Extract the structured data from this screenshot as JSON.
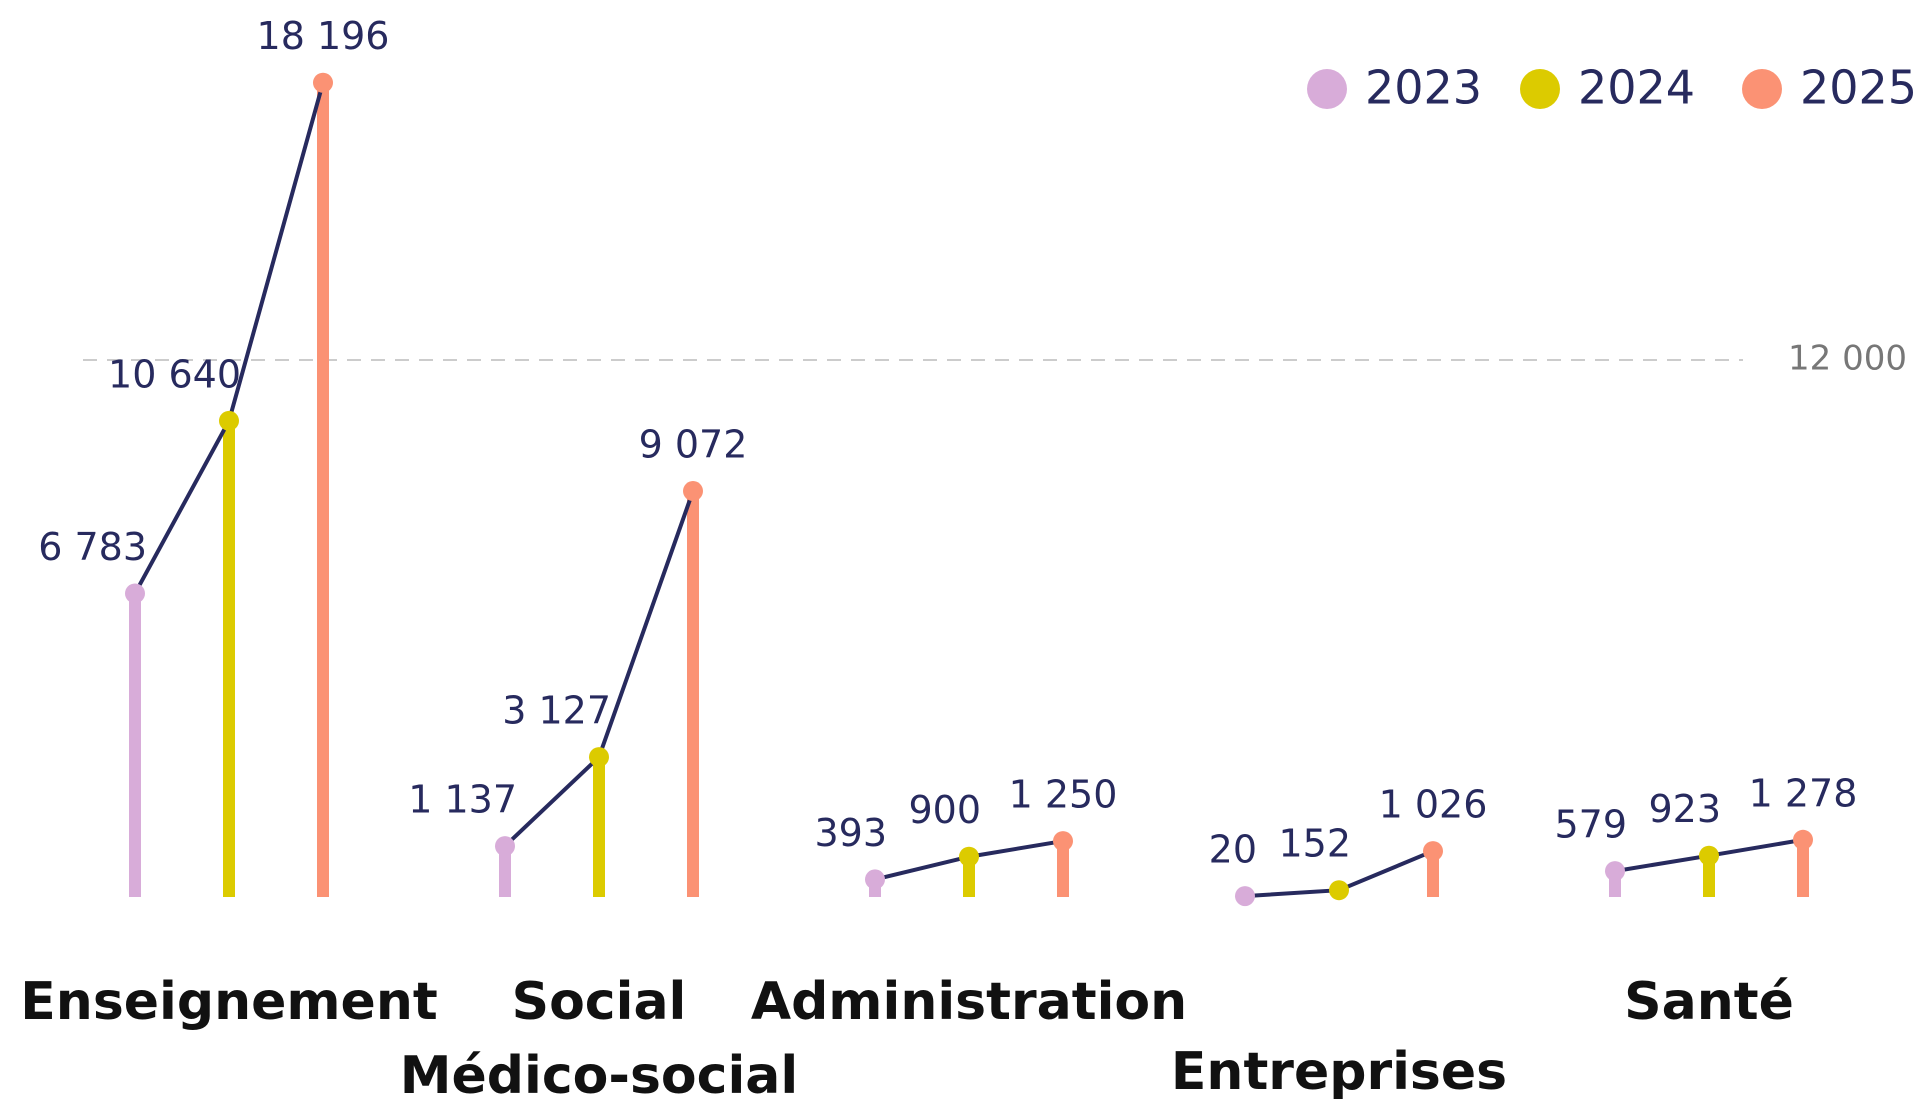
{
  "chart_data": {
    "type": "lollipop",
    "categories": [
      "Enseignement",
      "Social\nMédico-social",
      "Administration",
      "Entreprises",
      "Santé"
    ],
    "series": [
      {
        "name": "2023",
        "color": "#d8acd9",
        "values": [
          6783,
          1137,
          393,
          20,
          579
        ],
        "value_labels": [
          "6 783",
          "1 137",
          "393",
          "20",
          "579"
        ]
      },
      {
        "name": "2024",
        "color": "#dccb00",
        "values": [
          10640,
          3127,
          900,
          152,
          923
        ],
        "value_labels": [
          "10 640",
          "3 127",
          "900",
          "152",
          "923"
        ]
      },
      {
        "name": "2025",
        "color": "#fb9274",
        "values": [
          18196,
          9072,
          1250,
          1026,
          1278
        ],
        "value_labels": [
          "18 196",
          "9 072",
          "1 250",
          "1 026",
          "1 278"
        ]
      }
    ],
    "ylim": [
      0,
      20000
    ],
    "yticks": [
      {
        "value": 12000,
        "label": "12 000"
      }
    ],
    "grid": true,
    "legend": "top-right",
    "line_color": "#272a5e"
  }
}
